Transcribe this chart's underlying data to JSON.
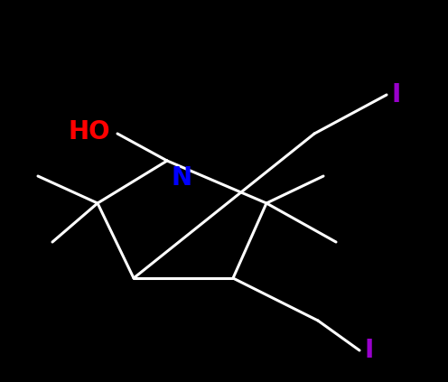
{
  "background_color": "#000000",
  "bond_color": "#ffffff",
  "N_color": "#0000ff",
  "O_color": "#ff0000",
  "I_color": "#9900cc",
  "font_size_atoms": 20,
  "figsize": [
    4.96,
    4.23
  ],
  "dpi": 100,
  "N_label": "N",
  "HO_label": "HO",
  "I_label": "I"
}
